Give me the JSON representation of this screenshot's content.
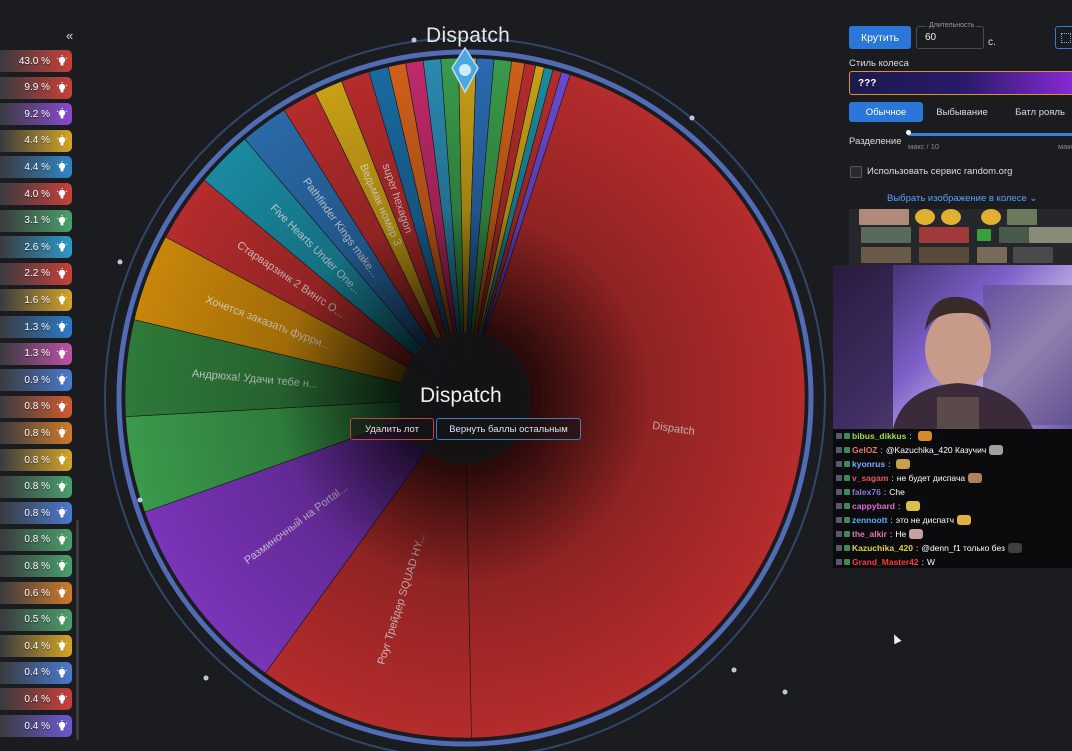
{
  "left_panel": {
    "collapse_label": "«",
    "chances": [
      {
        "pct": "43.0 %",
        "color": "#c8403a"
      },
      {
        "pct": "9.9 %",
        "color": "#c8403a"
      },
      {
        "pct": "9.2 %",
        "color": "#8a4ad0"
      },
      {
        "pct": "4.4 %",
        "color": "#d4a526"
      },
      {
        "pct": "4.4 %",
        "color": "#2f86c8"
      },
      {
        "pct": "4.0 %",
        "color": "#c8403a"
      },
      {
        "pct": "3.1 %",
        "color": "#4aa06a"
      },
      {
        "pct": "2.6 %",
        "color": "#2a9ac8"
      },
      {
        "pct": "2.2 %",
        "color": "#c8403a"
      },
      {
        "pct": "1.6 %",
        "color": "#d4a526"
      },
      {
        "pct": "1.3 %",
        "color": "#2a7ac8"
      },
      {
        "pct": "1.3 %",
        "color": "#c050a8"
      },
      {
        "pct": "0.9 %",
        "color": "#4a7ad0"
      },
      {
        "pct": "0.8 %",
        "color": "#d05a30"
      },
      {
        "pct": "0.8 %",
        "color": "#d07a2a"
      },
      {
        "pct": "0.8 %",
        "color": "#d4a526"
      },
      {
        "pct": "0.8 %",
        "color": "#4aa06a"
      },
      {
        "pct": "0.8 %",
        "color": "#4a7ad0"
      },
      {
        "pct": "0.8 %",
        "color": "#4aa06a"
      },
      {
        "pct": "0.8 %",
        "color": "#4aa06a"
      },
      {
        "pct": "0.6 %",
        "color": "#d07a2a"
      },
      {
        "pct": "0.5 %",
        "color": "#4aa06a"
      },
      {
        "pct": "0.4 %",
        "color": "#d4a526"
      },
      {
        "pct": "0.4 %",
        "color": "#4a7ad0"
      },
      {
        "pct": "0.4 %",
        "color": "#c8403a"
      },
      {
        "pct": "0.4 %",
        "color": "#6a5ad0"
      }
    ]
  },
  "wheel": {
    "title": "Dispatch",
    "center_title": "Dispatch",
    "remove_button": "Удалить лот",
    "return_button": "Вернуть баллы остальным",
    "slices": [
      {
        "label": "Dispatch",
        "pct": 43.0,
        "color": "#b52c2c"
      },
      {
        "label": "Роуг Трейдер SQUAD HY...",
        "pct": 9.9,
        "color": "#b52c2c"
      },
      {
        "label": "Разминочный на Portal...",
        "pct": 9.2,
        "color": "#7a34b8"
      },
      {
        "label": "",
        "pct": 4.4,
        "color": "#3a9a4a"
      },
      {
        "label": "Андрюха! Удачи тебе н...",
        "pct": 4.4,
        "color": "#2f7a3a"
      },
      {
        "label": "Хочется заказать фурри...",
        "pct": 4.0,
        "color": "#c8860a"
      },
      {
        "label": "Старварзинк 2 Вингс О...",
        "pct": 3.1,
        "color": "#b52c2c"
      },
      {
        "label": "Five Hearts Under One...",
        "pct": 2.6,
        "color": "#1a8aa0"
      },
      {
        "label": "Pathfinder Kings make...",
        "pct": 2.2,
        "color": "#2a6aa8"
      },
      {
        "label": "",
        "pct": 1.6,
        "color": "#b52c2c"
      },
      {
        "label": "Ведьмак номер 3",
        "pct": 1.3,
        "color": "#c8a016"
      },
      {
        "label": "super hexagon",
        "pct": 1.3,
        "color": "#b52c2c"
      },
      {
        "label": "",
        "pct": 0.9,
        "color": "#1a6aa0"
      },
      {
        "label": "",
        "pct": 0.8,
        "color": "#d0601a"
      },
      {
        "label": "",
        "pct": 0.8,
        "color": "#c02a6a"
      },
      {
        "label": "",
        "pct": 0.8,
        "color": "#2a8ab0"
      },
      {
        "label": "",
        "pct": 0.8,
        "color": "#3a9a4a"
      },
      {
        "label": "",
        "pct": 0.8,
        "color": "#c8a016"
      },
      {
        "label": "",
        "pct": 0.8,
        "color": "#2a6ab0"
      },
      {
        "label": "",
        "pct": 0.8,
        "color": "#3a9a4a"
      },
      {
        "label": "",
        "pct": 0.6,
        "color": "#d0601a"
      },
      {
        "label": "",
        "pct": 0.5,
        "color": "#b52c2c"
      },
      {
        "label": "",
        "pct": 0.4,
        "color": "#c8a016"
      },
      {
        "label": "",
        "pct": 0.4,
        "color": "#1a8aa0"
      },
      {
        "label": "",
        "pct": 0.4,
        "color": "#b52c2c"
      },
      {
        "label": "",
        "pct": 0.4,
        "color": "#6a4ad0"
      }
    ]
  },
  "controls": {
    "spin_button": "Крутить",
    "duration_label": "Длительность",
    "duration_value": "60",
    "duration_unit": "с.",
    "wheel_style_label": "Стиль колеса",
    "wheel_style_value": "???",
    "modes": [
      "Обычное",
      "Выбывание",
      "Батл рояль"
    ],
    "split_label": "Разделение",
    "split_min": "макс / 10",
    "split_max": "макс",
    "random_org_label": "Использовать сервис random.org",
    "image_select_label": "Выбрать изображение в колесе"
  },
  "chat": {
    "messages": [
      {
        "user": "bibus_dikkus",
        "color": "#9ee04a",
        "text": "",
        "emote": "#d88a2a"
      },
      {
        "user": "GelOZ",
        "color": "#e07a6a",
        "text": "@Kazuchika_420 Казучич",
        "emote": "#a0a0a0"
      },
      {
        "user": "kyonrus",
        "color": "#7ab0ff",
        "text": "",
        "emote": "#c8a04a"
      },
      {
        "user": "v_sagam",
        "color": "#e05a5a",
        "text": "не будет диспача",
        "emote": "#b08060"
      },
      {
        "user": "falex76",
        "color": "#8a7ad0",
        "text": "Che",
        "emote": ""
      },
      {
        "user": "cappybard",
        "color": "#e06ad0",
        "text": "",
        "emote": "#d8c04a"
      },
      {
        "user": "zennoott",
        "color": "#5ab0ff",
        "text": "это не диспатч",
        "emote": "#e0b040"
      },
      {
        "user": "the_alkir",
        "color": "#e07ab0",
        "text": "Не",
        "emote": "#c8a0a0"
      },
      {
        "user": "Kazuchika_420",
        "color": "#e0d04a",
        "text": "@denn_f1 только без",
        "emote": "#404040"
      },
      {
        "user": "Grand_Master42",
        "color": "#ff3a3a",
        "text": "W",
        "emote": ""
      }
    ]
  }
}
